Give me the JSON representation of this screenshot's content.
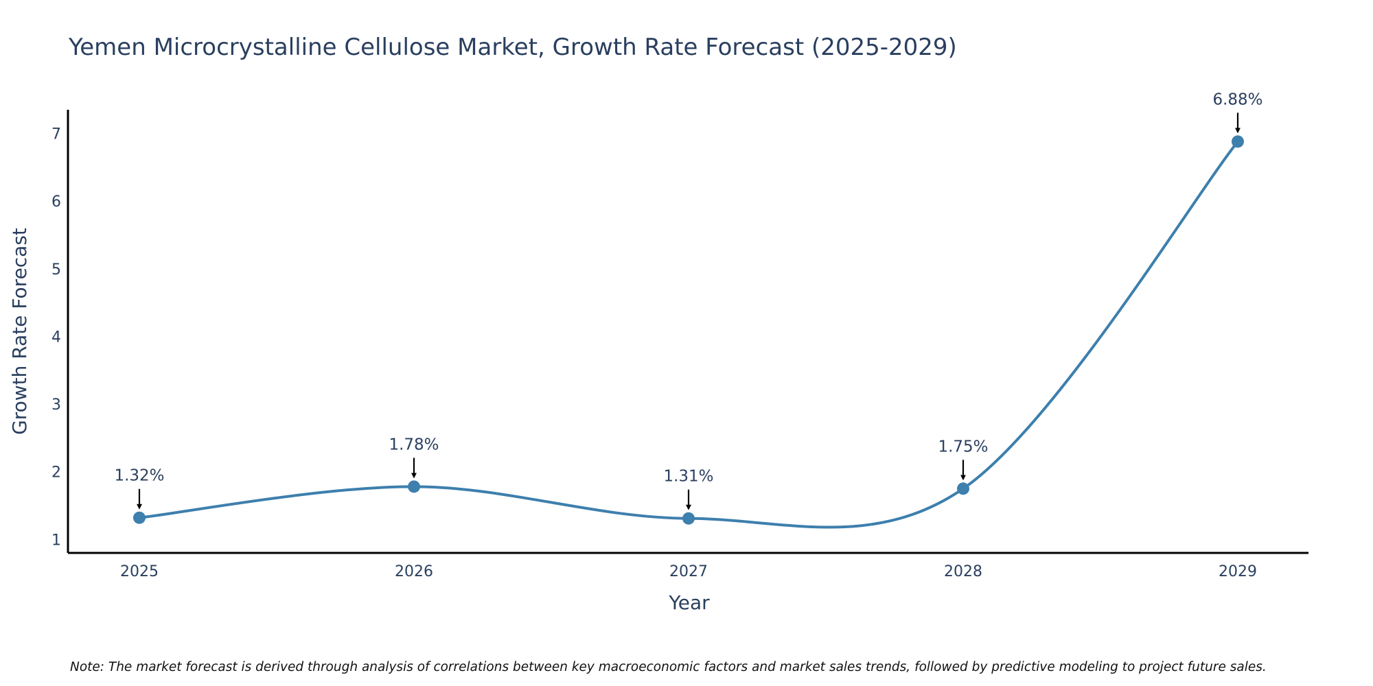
{
  "chart_data": {
    "type": "line",
    "title": "Yemen Microcrystalline Cellulose Market, Growth Rate Forecast (2025-2029)",
    "xlabel": "Year",
    "ylabel": "Growth Rate Forecast",
    "categories": [
      "2025",
      "2026",
      "2027",
      "2028",
      "2029"
    ],
    "values": [
      1.32,
      1.78,
      1.31,
      1.75,
      6.88
    ],
    "data_labels": [
      "1.32%",
      "1.78%",
      "1.31%",
      "1.75%",
      "6.88%"
    ],
    "y_ticks": [
      1,
      2,
      3,
      4,
      5,
      6,
      7
    ],
    "y_tick_labels": [
      "1",
      "2",
      "3",
      "4",
      "5",
      "6",
      "7"
    ],
    "ylim": [
      0.8,
      7.35
    ],
    "grid": false,
    "line_shape": "spline",
    "line_color": "#3d7fad",
    "marker_color": "#3d7fad",
    "arrow_color": "#000000",
    "note": "Note: The market forecast is derived through analysis of correlations between key macroeconomic factors and market sales trends, followed by predictive modeling to project future sales."
  }
}
